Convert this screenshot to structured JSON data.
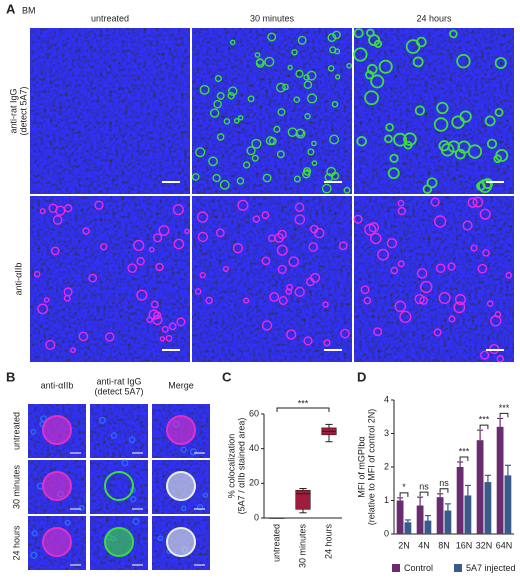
{
  "panel_a": {
    "label": "A",
    "tissue": "BM",
    "columns": [
      "untreated",
      "30 minutes",
      "24 hours"
    ],
    "rows": [
      [
        "anti-rat IgG",
        "(detect 5A7)"
      ],
      [
        "anti-αIIb"
      ]
    ]
  },
  "panel_b": {
    "label": "B",
    "columns": [
      [
        "anti-αIIb"
      ],
      [
        "anti-rat IgG",
        "(detect 5A7)"
      ],
      [
        "Merge"
      ]
    ],
    "rows": [
      "untreated",
      "30 minutes",
      "24 hours"
    ]
  },
  "chart_data": [
    {
      "type": "box",
      "panel_label": "C",
      "y_label": [
        "% colocalization",
        "(5A7 / αIIb stained area)"
      ],
      "categories": [
        "untreated",
        "30 minutes",
        "24 hours"
      ],
      "boxes": [
        {
          "min": 0,
          "q1": 0,
          "median": 0,
          "q3": 0,
          "max": 0
        },
        {
          "min": 3,
          "q1": 5,
          "median": 14,
          "q3": 16,
          "max": 17
        },
        {
          "min": 44,
          "q1": 48,
          "median": 50,
          "q3": 52,
          "max": 54
        }
      ],
      "color": "#a01c3c",
      "ylim": [
        0,
        60
      ],
      "yticks": [
        0,
        20,
        40,
        60
      ],
      "significance": "***"
    },
    {
      "type": "bar",
      "panel_label": "D",
      "y_label": [
        "MFI of mGPIbα",
        "(relative to MFI of control 2N)"
      ],
      "categories": [
        "2N",
        "4N",
        "8N",
        "16N",
        "32N",
        "64N"
      ],
      "series": [
        {
          "name": "Control",
          "color": "#6a2c70",
          "values": [
            1.0,
            0.85,
            1.1,
            2.0,
            2.8,
            3.2
          ],
          "errors": [
            0.08,
            0.25,
            0.1,
            0.15,
            0.3,
            0.25
          ]
        },
        {
          "name": "5A7 injected",
          "color": "#3a5a8a",
          "values": [
            0.35,
            0.4,
            0.7,
            1.15,
            1.55,
            1.75
          ],
          "errors": [
            0.07,
            0.15,
            0.2,
            0.3,
            0.2,
            0.3
          ]
        }
      ],
      "ylim": [
        0,
        4
      ],
      "yticks": [
        0,
        1,
        2,
        3,
        4
      ],
      "significance": [
        "*",
        "ns",
        "ns",
        "***",
        "***",
        "***"
      ],
      "legend": "bottom"
    }
  ]
}
